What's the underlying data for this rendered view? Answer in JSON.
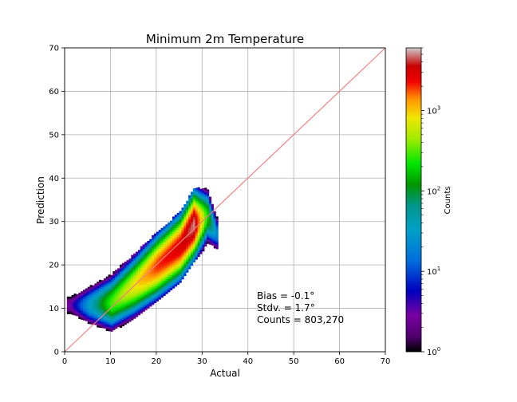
{
  "chart_data": {
    "type": "heatmap",
    "title": "Minimum 2m Temperature",
    "xlabel": "Actual",
    "ylabel": "Prediction",
    "xlim": [
      0,
      70
    ],
    "ylim": [
      0,
      70
    ],
    "xticks": [
      "0",
      "10",
      "20",
      "30",
      "40",
      "50",
      "60",
      "70"
    ],
    "yticks": [
      "0",
      "10",
      "20",
      "30",
      "40",
      "50",
      "60",
      "70"
    ],
    "grid": true,
    "reference_line": {
      "from": [
        0,
        0
      ],
      "to": [
        70,
        70
      ],
      "color": "#f08080"
    },
    "density_cloud": {
      "description_points": [
        {
          "x": 1,
          "y": 10.5,
          "count": 3
        },
        {
          "x": 5,
          "y": 10.5,
          "count": 30
        },
        {
          "x": 10,
          "y": 11,
          "count": 300
        },
        {
          "x": 15,
          "y": 15,
          "count": 800
        },
        {
          "x": 20,
          "y": 19.5,
          "count": 2000
        },
        {
          "x": 25,
          "y": 24,
          "count": 3000
        },
        {
          "x": 28,
          "y": 29,
          "count": 5000
        },
        {
          "x": 31,
          "y": 31,
          "count": 200
        },
        {
          "x": 33,
          "y": 27,
          "count": 20
        }
      ],
      "x_range": [
        0,
        33
      ],
      "y_range": [
        7,
        33
      ]
    },
    "colorbar": {
      "label": "Counts",
      "scale": "log",
      "range": [
        1,
        6000
      ],
      "ticks": [
        {
          "value": 1,
          "base": "10",
          "exp": "0"
        },
        {
          "value": 10,
          "base": "10",
          "exp": "1"
        },
        {
          "value": 100,
          "base": "10",
          "exp": "2"
        },
        {
          "value": 1000,
          "base": "10",
          "exp": "3"
        }
      ]
    },
    "annotations": [
      "Bias = -0.1°",
      "Stdv. = 1.7°",
      "Counts = 803,270"
    ]
  }
}
